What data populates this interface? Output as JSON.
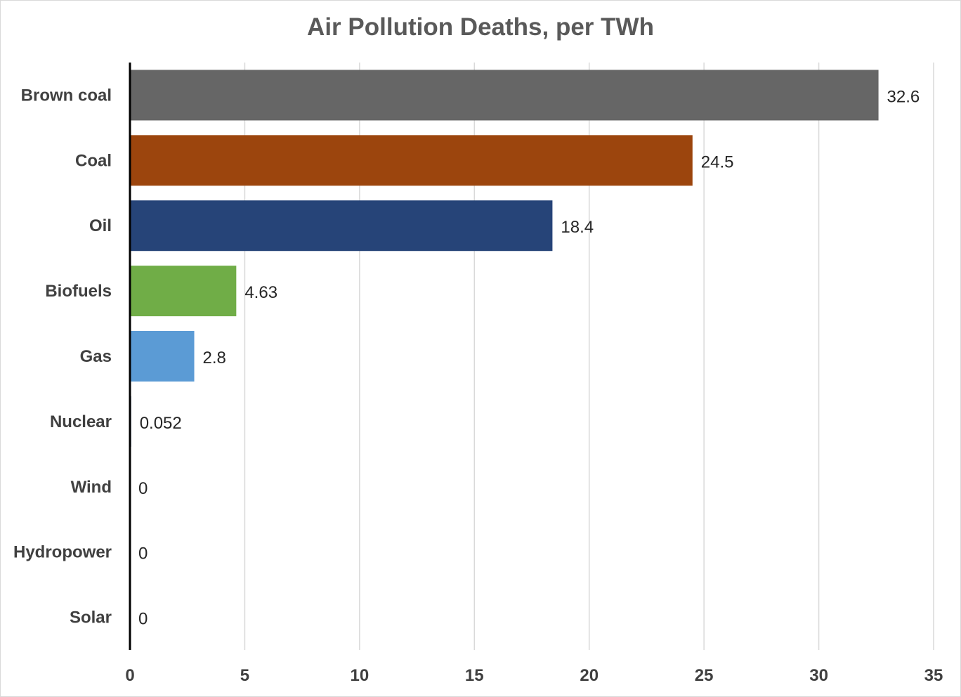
{
  "chart_data": {
    "type": "bar",
    "orientation": "horizontal",
    "title": "Air Pollution Deaths, per TWh",
    "xlabel": "",
    "ylabel": "",
    "categories": [
      "Brown coal",
      "Coal",
      "Oil",
      "Biofuels",
      "Gas",
      "Nuclear",
      "Wind",
      "Hydropower",
      "Solar"
    ],
    "values": [
      32.6,
      24.5,
      18.4,
      4.63,
      2.8,
      0.052,
      0,
      0,
      0
    ],
    "data_labels": [
      "32.6",
      "24.5",
      "18.4",
      "4.63",
      "2.8",
      "0.052",
      "0",
      "0",
      "0"
    ],
    "bar_colors": [
      "#666666",
      "#9c450d",
      "#264478",
      "#70ad47",
      "#5b9bd5",
      "#264478",
      "#264478",
      "#264478",
      "#264478"
    ],
    "xlim": [
      0,
      35
    ],
    "x_ticks": [
      0,
      5,
      10,
      15,
      20,
      25,
      30,
      35
    ],
    "x_tick_labels": [
      "0",
      "5",
      "10",
      "15",
      "20",
      "25",
      "30",
      "35"
    ],
    "grid": "vertical",
    "grid_color": "#d9d9d9",
    "axis_color": "#000000",
    "legend": "none"
  }
}
